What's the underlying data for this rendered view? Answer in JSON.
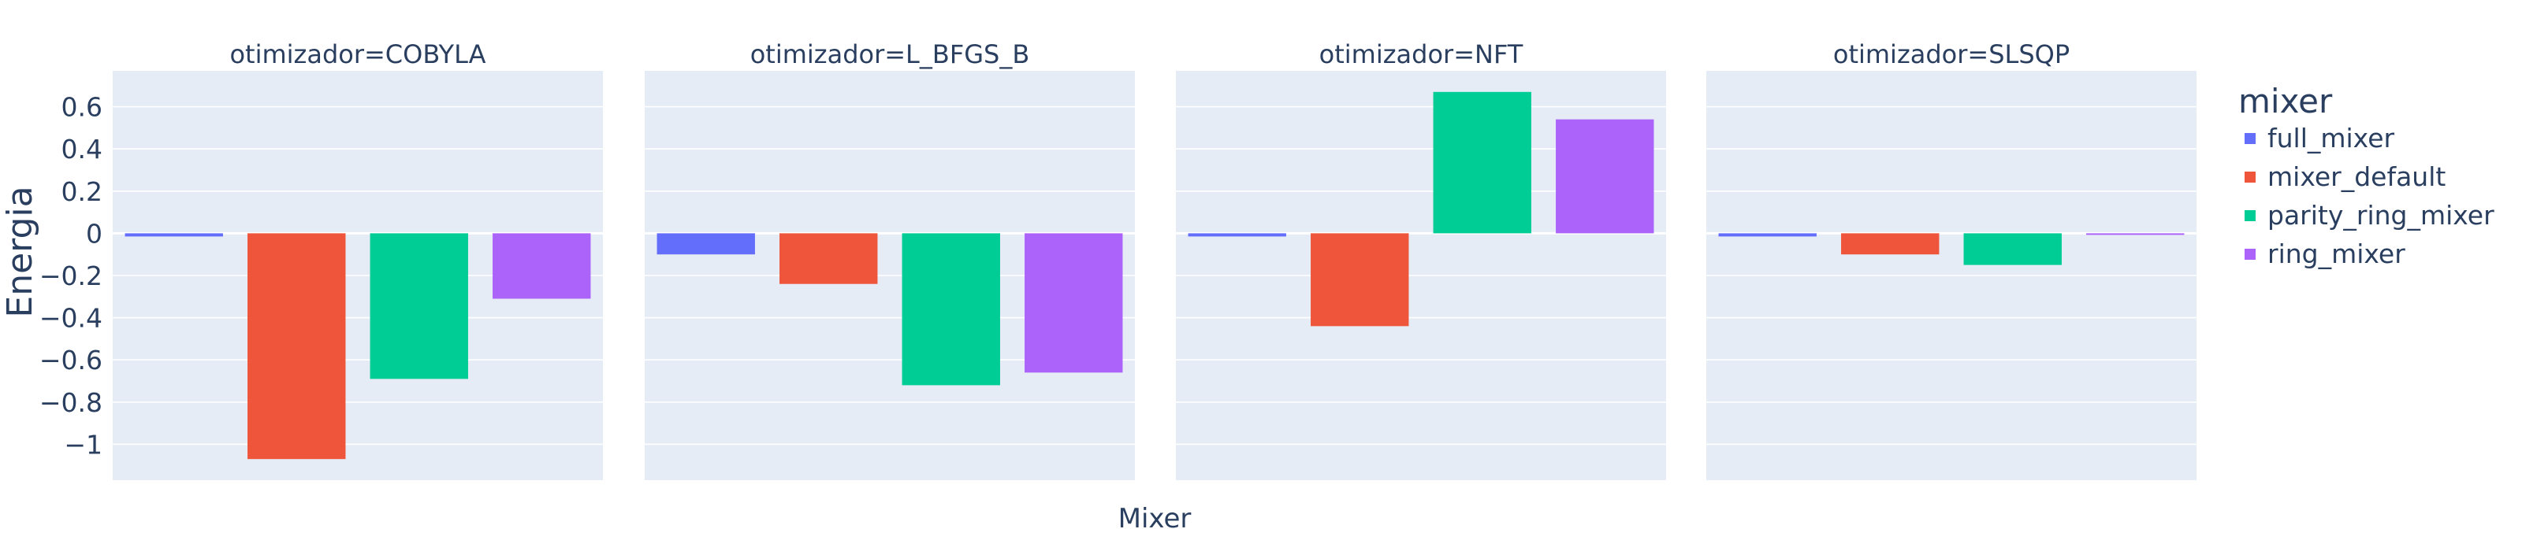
{
  "chart_data": {
    "type": "bar",
    "facet_variable": "otimizador",
    "facets": [
      {
        "title": "otimizador=COBYLA",
        "values": {
          "full_mixer": -0.015,
          "mixer_default": -1.07,
          "parity_ring_mixer": -0.69,
          "ring_mixer": -0.31
        }
      },
      {
        "title": "otimizador=L_BFGS_B",
        "values": {
          "full_mixer": -0.1,
          "mixer_default": -0.24,
          "parity_ring_mixer": -0.72,
          "ring_mixer": -0.66
        }
      },
      {
        "title": "otimizador=NFT",
        "values": {
          "full_mixer": -0.015,
          "mixer_default": -0.44,
          "parity_ring_mixer": 0.67,
          "ring_mixer": 0.54
        }
      },
      {
        "title": "otimizador=SLSQP",
        "values": {
          "full_mixer": -0.015,
          "mixer_default": -0.1,
          "parity_ring_mixer": -0.15,
          "ring_mixer": -0.005
        }
      }
    ],
    "series": [
      {
        "name": "full_mixer",
        "color": "#636efa"
      },
      {
        "name": "mixer_default",
        "color": "#EF553B"
      },
      {
        "name": "parity_ring_mixer",
        "color": "#00cc96"
      },
      {
        "name": "ring_mixer",
        "color": "#ab63fa"
      }
    ],
    "xlabel": "Mixer",
    "ylabel": "Energia",
    "ylim": [
      -1.17,
      0.77
    ],
    "yticks": [
      {
        "value": 0.6,
        "label": "0.6"
      },
      {
        "value": 0.4,
        "label": "0.4"
      },
      {
        "value": 0.2,
        "label": "0.2"
      },
      {
        "value": 0,
        "label": "0"
      },
      {
        "value": -0.2,
        "label": "−0.2"
      },
      {
        "value": -0.4,
        "label": "−0.4"
      },
      {
        "value": -0.6,
        "label": "−0.6"
      },
      {
        "value": -0.8,
        "label": "−0.8"
      },
      {
        "value": -1,
        "label": "−1"
      }
    ],
    "legend": {
      "title": "mixer",
      "placement": "right"
    },
    "grid": true,
    "colors": {
      "plot_bg": "#E5ECF6",
      "grid": "#ffffff",
      "text": "#2a3f5f"
    }
  }
}
